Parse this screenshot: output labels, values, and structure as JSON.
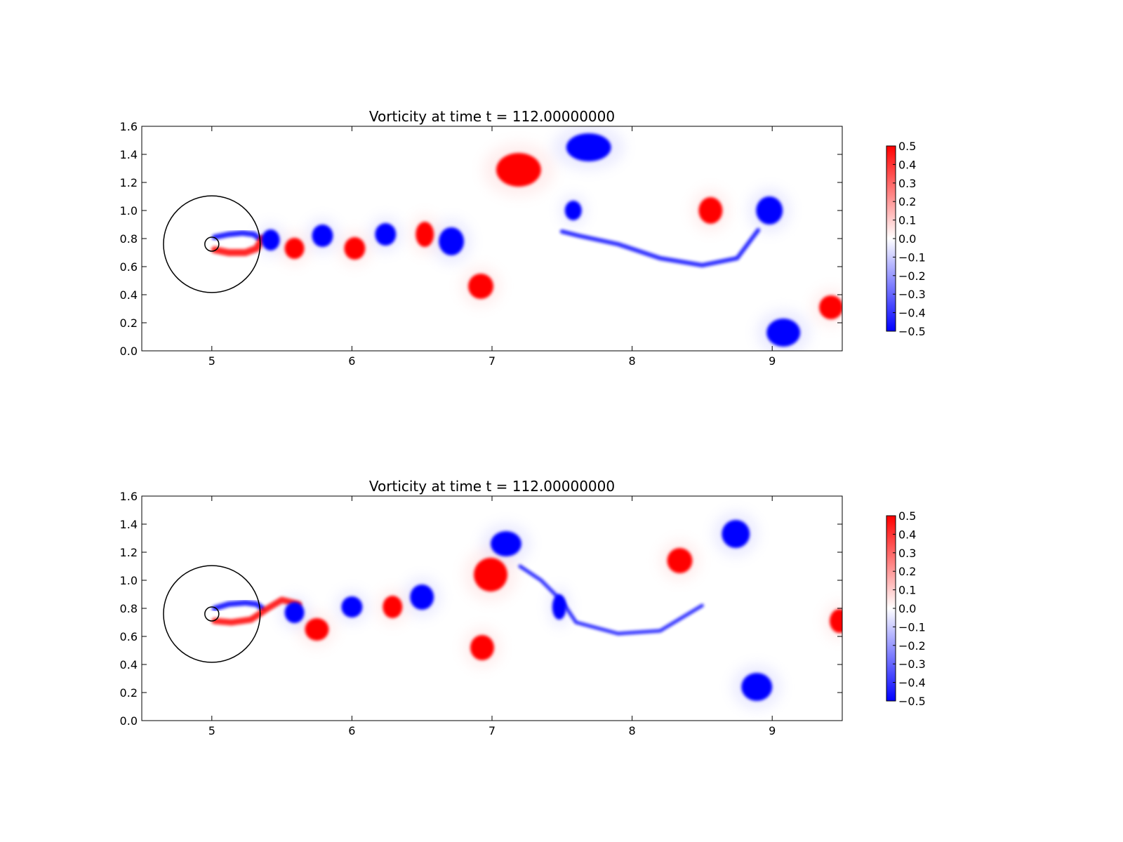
{
  "chart_data": [
    {
      "type": "heatmap",
      "title": "Vorticity at time t =   112.00000000",
      "xlabel": "",
      "ylabel": "",
      "xlim": [
        4.5,
        9.5
      ],
      "ylim": [
        0.0,
        1.6
      ],
      "xticks": [
        "5",
        "6",
        "7",
        "8",
        "9"
      ],
      "yticks": [
        "0.0",
        "0.2",
        "0.4",
        "0.6",
        "0.8",
        "1.0",
        "1.2",
        "1.4",
        "1.6"
      ],
      "colorbar": {
        "range": [
          -0.5,
          0.5
        ],
        "ticks": [
          "0.5",
          "0.4",
          "0.3",
          "0.2",
          "0.1",
          "0.0",
          "−0.1",
          "−0.2",
          "−0.3",
          "−0.4",
          "−0.5"
        ],
        "colors": [
          "#0000ff",
          "#ffffff",
          "#ff0000"
        ]
      },
      "circles": [
        {
          "cx": 5.0,
          "cy": 0.76,
          "r": 0.345
        },
        {
          "cx": 5.0,
          "cy": 0.76,
          "r": 0.05
        }
      ],
      "vortices": [
        {
          "x": 7.19,
          "y": 1.29,
          "w": 0.5,
          "rx": 0.16,
          "ry": 0.12
        },
        {
          "x": 7.69,
          "y": 1.45,
          "w": -0.5,
          "rx": 0.16,
          "ry": 0.1
        },
        {
          "x": 7.58,
          "y": 1.0,
          "w": -0.5,
          "rx": 0.06,
          "ry": 0.07
        },
        {
          "x": 8.56,
          "y": 1.0,
          "w": 0.5,
          "rx": 0.085,
          "ry": 0.095
        },
        {
          "x": 8.98,
          "y": 1.0,
          "w": -0.5,
          "rx": 0.095,
          "ry": 0.1
        },
        {
          "x": 9.08,
          "y": 0.13,
          "w": -0.5,
          "rx": 0.12,
          "ry": 0.1
        },
        {
          "x": 9.42,
          "y": 0.31,
          "w": 0.5,
          "rx": 0.085,
          "ry": 0.085
        },
        {
          "x": 6.92,
          "y": 0.46,
          "w": 0.5,
          "rx": 0.09,
          "ry": 0.09
        },
        {
          "x": 6.71,
          "y": 0.78,
          "w": -0.5,
          "rx": 0.09,
          "ry": 0.1
        },
        {
          "x": 6.52,
          "y": 0.83,
          "w": 0.5,
          "rx": 0.065,
          "ry": 0.09
        },
        {
          "x": 6.24,
          "y": 0.83,
          "w": -0.5,
          "rx": 0.075,
          "ry": 0.08
        },
        {
          "x": 6.02,
          "y": 0.73,
          "w": 0.5,
          "rx": 0.075,
          "ry": 0.08
        },
        {
          "x": 5.79,
          "y": 0.82,
          "w": -0.5,
          "rx": 0.075,
          "ry": 0.08
        },
        {
          "x": 5.59,
          "y": 0.73,
          "w": 0.5,
          "rx": 0.07,
          "ry": 0.075
        },
        {
          "x": 5.42,
          "y": 0.79,
          "w": -0.5,
          "rx": 0.065,
          "ry": 0.075
        }
      ],
      "wake": [
        {
          "sign": -1,
          "points": [
            [
              5.02,
              0.81
            ],
            [
              5.12,
              0.83
            ],
            [
              5.22,
              0.84
            ],
            [
              5.3,
              0.83
            ],
            [
              5.34,
              0.8
            ]
          ],
          "width": 0.04
        },
        {
          "sign": 1,
          "points": [
            [
              5.02,
              0.72
            ],
            [
              5.12,
              0.7
            ],
            [
              5.24,
              0.7
            ],
            [
              5.32,
              0.73
            ],
            [
              5.36,
              0.8
            ]
          ],
          "width": 0.05
        },
        {
          "sign": -1,
          "points": [
            [
              7.5,
              0.85
            ],
            [
              7.62,
              0.82
            ],
            [
              7.9,
              0.76
            ],
            [
              8.2,
              0.66
            ],
            [
              8.5,
              0.61
            ],
            [
              8.75,
              0.66
            ],
            [
              8.9,
              0.86
            ]
          ],
          "width": 0.03
        }
      ]
    },
    {
      "type": "heatmap",
      "title": "Vorticity at time t =   112.00000000",
      "xlabel": "",
      "ylabel": "",
      "xlim": [
        4.5,
        9.5
      ],
      "ylim": [
        0.0,
        1.6
      ],
      "xticks": [
        "5",
        "6",
        "7",
        "8",
        "9"
      ],
      "yticks": [
        "0.0",
        "0.2",
        "0.4",
        "0.6",
        "0.8",
        "1.0",
        "1.2",
        "1.4",
        "1.6"
      ],
      "colorbar": {
        "range": [
          -0.5,
          0.5
        ],
        "ticks": [
          "0.5",
          "0.4",
          "0.3",
          "0.2",
          "0.1",
          "0.0",
          "−0.1",
          "−0.2",
          "−0.3",
          "−0.4",
          "−0.5"
        ],
        "colors": [
          "#0000ff",
          "#ffffff",
          "#ff0000"
        ]
      },
      "circles": [
        {
          "cx": 5.0,
          "cy": 0.76,
          "r": 0.345
        },
        {
          "cx": 5.0,
          "cy": 0.76,
          "r": 0.05
        }
      ],
      "vortices": [
        {
          "x": 7.1,
          "y": 1.26,
          "w": -0.5,
          "rx": 0.11,
          "ry": 0.09
        },
        {
          "x": 6.99,
          "y": 1.04,
          "w": 0.5,
          "rx": 0.12,
          "ry": 0.12
        },
        {
          "x": 8.34,
          "y": 1.14,
          "w": 0.5,
          "rx": 0.09,
          "ry": 0.09
        },
        {
          "x": 8.74,
          "y": 1.33,
          "w": -0.5,
          "rx": 0.1,
          "ry": 0.1
        },
        {
          "x": 7.48,
          "y": 0.81,
          "w": -0.5,
          "rx": 0.05,
          "ry": 0.09
        },
        {
          "x": 6.93,
          "y": 0.52,
          "w": 0.5,
          "rx": 0.085,
          "ry": 0.09
        },
        {
          "x": 8.89,
          "y": 0.24,
          "w": -0.5,
          "rx": 0.11,
          "ry": 0.1
        },
        {
          "x": 9.48,
          "y": 0.71,
          "w": 0.5,
          "rx": 0.07,
          "ry": 0.085
        },
        {
          "x": 6.5,
          "y": 0.88,
          "w": -0.5,
          "rx": 0.085,
          "ry": 0.09
        },
        {
          "x": 6.29,
          "y": 0.81,
          "w": 0.5,
          "rx": 0.07,
          "ry": 0.08
        },
        {
          "x": 6.0,
          "y": 0.81,
          "w": -0.5,
          "rx": 0.075,
          "ry": 0.075
        },
        {
          "x": 5.75,
          "y": 0.65,
          "w": 0.5,
          "rx": 0.085,
          "ry": 0.08
        },
        {
          "x": 5.59,
          "y": 0.77,
          "w": -0.5,
          "rx": 0.07,
          "ry": 0.075
        }
      ],
      "wake": [
        {
          "sign": -1,
          "points": [
            [
              5.02,
              0.8
            ],
            [
              5.12,
              0.83
            ],
            [
              5.24,
              0.84
            ],
            [
              5.32,
              0.83
            ],
            [
              5.36,
              0.8
            ]
          ],
          "width": 0.04
        },
        {
          "sign": 1,
          "points": [
            [
              5.02,
              0.71
            ],
            [
              5.14,
              0.7
            ],
            [
              5.28,
              0.72
            ],
            [
              5.4,
              0.8
            ],
            [
              5.5,
              0.86
            ],
            [
              5.62,
              0.83
            ]
          ],
          "width": 0.045
        },
        {
          "sign": -1,
          "points": [
            [
              7.2,
              1.1
            ],
            [
              7.35,
              1.0
            ],
            [
              7.5,
              0.85
            ],
            [
              7.6,
              0.7
            ],
            [
              7.9,
              0.62
            ],
            [
              8.2,
              0.64
            ],
            [
              8.5,
              0.82
            ]
          ],
          "width": 0.025
        }
      ]
    }
  ]
}
